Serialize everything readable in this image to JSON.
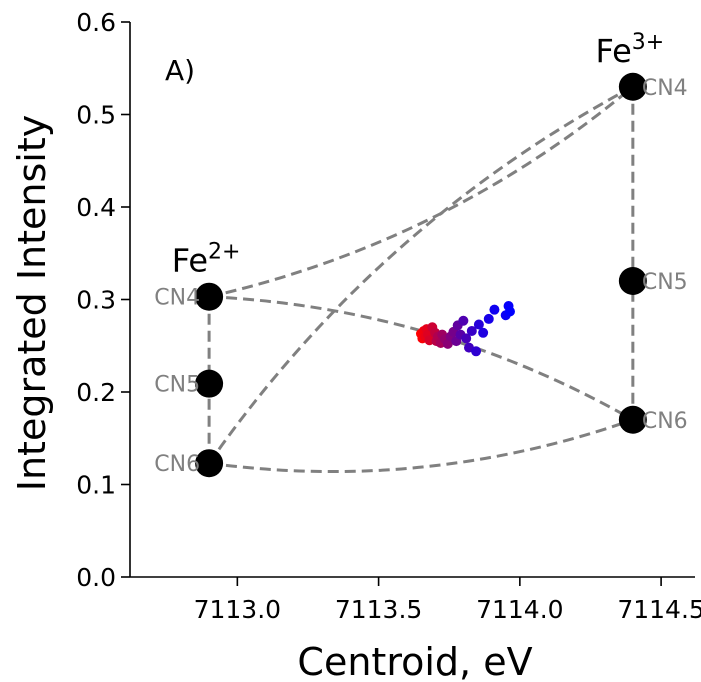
{
  "chart_data": {
    "type": "scatter",
    "panel_label": "A)",
    "xlabel": "Centroid, eV",
    "ylabel": "Integrated Intensity",
    "xlim": [
      7112.62,
      7114.62
    ],
    "ylim": [
      0.0,
      0.6
    ],
    "x_ticks": [
      7113.0,
      7113.5,
      7114.0,
      7114.5
    ],
    "x_tick_labels": [
      "7113.0",
      "7113.5",
      "7114.0",
      "7114.5"
    ],
    "y_ticks": [
      0.0,
      0.1,
      0.2,
      0.3,
      0.4,
      0.5,
      0.6
    ],
    "y_tick_labels": [
      "0.0",
      "0.1",
      "0.2",
      "0.3",
      "0.4",
      "0.5",
      "0.6"
    ],
    "grid": false,
    "colors": {
      "reference_marker": "#000000",
      "reference_line": "#808080",
      "cn_label": "#808080",
      "data_start": "#ff0000",
      "data_end": "#0000ff"
    },
    "ion_labels": [
      {
        "base": "Fe",
        "sup": "2+",
        "anchor": "Fe2-CN4"
      },
      {
        "base": "Fe",
        "sup": "3+",
        "anchor": "Fe3-CN4"
      }
    ],
    "reference_points": [
      {
        "id": "Fe2-CN4",
        "label": "CN4",
        "x": 7112.9,
        "y": 0.303
      },
      {
        "id": "Fe2-CN5",
        "label": "CN5",
        "x": 7112.9,
        "y": 0.209
      },
      {
        "id": "Fe2-CN6",
        "label": "CN6",
        "x": 7112.9,
        "y": 0.123
      },
      {
        "id": "Fe3-CN4",
        "label": "CN4",
        "x": 7114.4,
        "y": 0.53
      },
      {
        "id": "Fe3-CN5",
        "label": "CN5",
        "x": 7114.4,
        "y": 0.32
      },
      {
        "id": "Fe3-CN6",
        "label": "CN6",
        "x": 7114.4,
        "y": 0.17
      }
    ],
    "reference_lines": [
      {
        "from": "Fe2-CN4",
        "to": "Fe2-CN6",
        "bow": 0
      },
      {
        "from": "Fe3-CN4",
        "to": "Fe3-CN6",
        "bow": 0
      },
      {
        "from": "Fe2-CN4",
        "to": "Fe3-CN4",
        "bow": 1
      },
      {
        "from": "Fe2-CN6",
        "to": "Fe3-CN6",
        "bow": 1
      },
      {
        "from": "Fe2-CN4",
        "to": "Fe3-CN6",
        "bow": -1
      },
      {
        "from": "Fe2-CN6",
        "to": "Fe3-CN4",
        "bow": -1
      }
    ],
    "series": [
      {
        "points": [
          {
            "x": 7113.65,
            "y": 0.263,
            "c": 0.0
          },
          {
            "x": 7113.655,
            "y": 0.258,
            "c": 0.02
          },
          {
            "x": 7113.66,
            "y": 0.266,
            "c": 0.05
          },
          {
            "x": 7113.665,
            "y": 0.26,
            "c": 0.08
          },
          {
            "x": 7113.67,
            "y": 0.268,
            "c": 0.1
          },
          {
            "x": 7113.675,
            "y": 0.262,
            "c": 0.13
          },
          {
            "x": 7113.68,
            "y": 0.256,
            "c": 0.16
          },
          {
            "x": 7113.69,
            "y": 0.27,
            "c": 0.2
          },
          {
            "x": 7113.7,
            "y": 0.264,
            "c": 0.24
          },
          {
            "x": 7113.705,
            "y": 0.255,
            "c": 0.28
          },
          {
            "x": 7113.71,
            "y": 0.26,
            "c": 0.31
          },
          {
            "x": 7113.72,
            "y": 0.253,
            "c": 0.35
          },
          {
            "x": 7113.725,
            "y": 0.262,
            "c": 0.38
          },
          {
            "x": 7113.735,
            "y": 0.257,
            "c": 0.42
          },
          {
            "x": 7113.745,
            "y": 0.252,
            "c": 0.46
          },
          {
            "x": 7113.755,
            "y": 0.26,
            "c": 0.5
          },
          {
            "x": 7113.765,
            "y": 0.265,
            "c": 0.54
          },
          {
            "x": 7113.775,
            "y": 0.255,
            "c": 0.58
          },
          {
            "x": 7113.78,
            "y": 0.272,
            "c": 0.62
          },
          {
            "x": 7113.79,
            "y": 0.262,
            "c": 0.65
          },
          {
            "x": 7113.8,
            "y": 0.277,
            "c": 0.69
          },
          {
            "x": 7113.81,
            "y": 0.258,
            "c": 0.72
          },
          {
            "x": 7113.82,
            "y": 0.248,
            "c": 0.75
          },
          {
            "x": 7113.83,
            "y": 0.266,
            "c": 0.78
          },
          {
            "x": 7113.845,
            "y": 0.244,
            "c": 0.82
          },
          {
            "x": 7113.855,
            "y": 0.273,
            "c": 0.85
          },
          {
            "x": 7113.87,
            "y": 0.264,
            "c": 0.88
          },
          {
            "x": 7113.89,
            "y": 0.279,
            "c": 0.91
          },
          {
            "x": 7113.91,
            "y": 0.289,
            "c": 0.94
          },
          {
            "x": 7113.95,
            "y": 0.283,
            "c": 0.96
          },
          {
            "x": 7113.96,
            "y": 0.293,
            "c": 0.98
          },
          {
            "x": 7113.965,
            "y": 0.287,
            "c": 1.0
          }
        ]
      }
    ]
  }
}
